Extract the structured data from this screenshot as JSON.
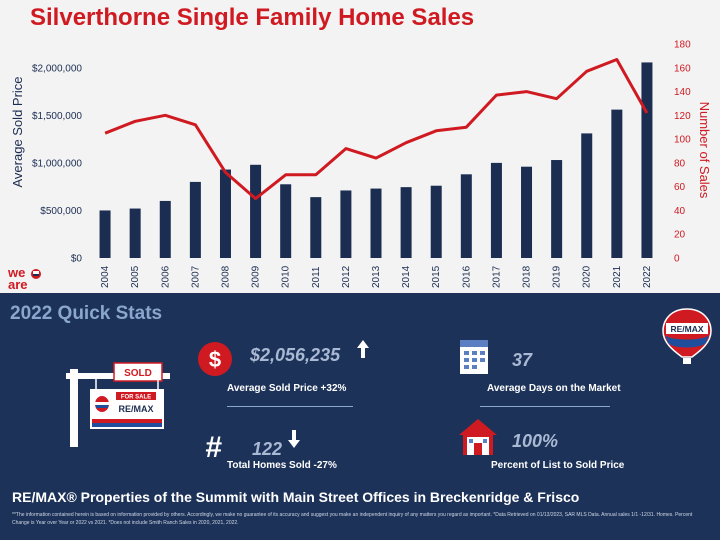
{
  "title": "Silverthorne Single Family Home Sales",
  "logo_left": {
    "text_top": "we",
    "text_bottom": "are"
  },
  "chart_data": {
    "type": "bar",
    "categories": [
      "2004",
      "2005",
      "2006",
      "2007",
      "2008",
      "2009",
      "2010",
      "2011",
      "2012",
      "2013",
      "2014",
      "2015",
      "2016",
      "2017",
      "2018",
      "2019",
      "2020",
      "2021",
      "2022"
    ],
    "series": [
      {
        "name": "Average Sold Price",
        "type": "bar",
        "axis": "left",
        "color": "#1c2d52",
        "values": [
          500000,
          520000,
          600000,
          800000,
          930000,
          980000,
          775000,
          640000,
          710000,
          730000,
          745000,
          760000,
          880000,
          1000000,
          960000,
          1030000,
          1310000,
          1560000,
          2056235
        ]
      },
      {
        "name": "Number of Sales",
        "type": "line",
        "axis": "right",
        "color": "#d01a22",
        "values": [
          105,
          115,
          120,
          112,
          72,
          50,
          70,
          70,
          92,
          84,
          97,
          107,
          110,
          137,
          140,
          134,
          157,
          167,
          122
        ]
      }
    ],
    "ylabel": "Average Sold Price",
    "y2label": "Number of Sales",
    "ylim": [
      0,
      2250000
    ],
    "y2lim": [
      0,
      180
    ],
    "yticks": [
      "$0",
      "$500,000",
      "$1,000,000",
      "$1,500,000",
      "$2,000,000"
    ],
    "y2ticks": [
      "0",
      "20",
      "40",
      "60",
      "80",
      "100",
      "120",
      "140",
      "160",
      "180"
    ],
    "grid": false
  },
  "stats": {
    "header": "2022 Quick Stats",
    "avg_price": {
      "value": "$2,056,235",
      "label": "Average Sold Price +32%",
      "icon": "dollar-icon",
      "arrow": "up-arrow-icon"
    },
    "days_market": {
      "value": "37",
      "label": "Average Days on the Market",
      "icon": "calendar-icon"
    },
    "total_sold": {
      "value": "122",
      "label": "Total Homes Sold -27%",
      "icon": "hash-icon",
      "arrow": "down-arrow-icon"
    },
    "list_to_sold": {
      "value": "100%",
      "label": "Percent of List to Sold Price",
      "icon": "house-icon"
    },
    "sign": {
      "sold": "SOLD",
      "for_sale": "FOR SALE",
      "brand": "RE/MAX"
    },
    "balloon_brand": "RE/MAX"
  },
  "footer": {
    "title": "RE/MAX® Properties of the Summit with Main Street Offices in Breckenridge & Frisco",
    "note": "**The information contained herein is based on information provided by others. Accordingly, we make no guarantee of its accuracy and suggest you make an independent inquiry of any matters you regard as important. *Data Retrieved on 01/13/2023, SAR MLS Data. Annual sales 1/1 -12/31. Homes. Percent Change is Year over Year or 2022 vs 2021. *Does not include Smith Ranch Sales in 2020, 2021, 2022."
  },
  "colors": {
    "accent_red": "#d01a22",
    "navy": "#1c2d52",
    "panel_blue": "#1d3259"
  }
}
